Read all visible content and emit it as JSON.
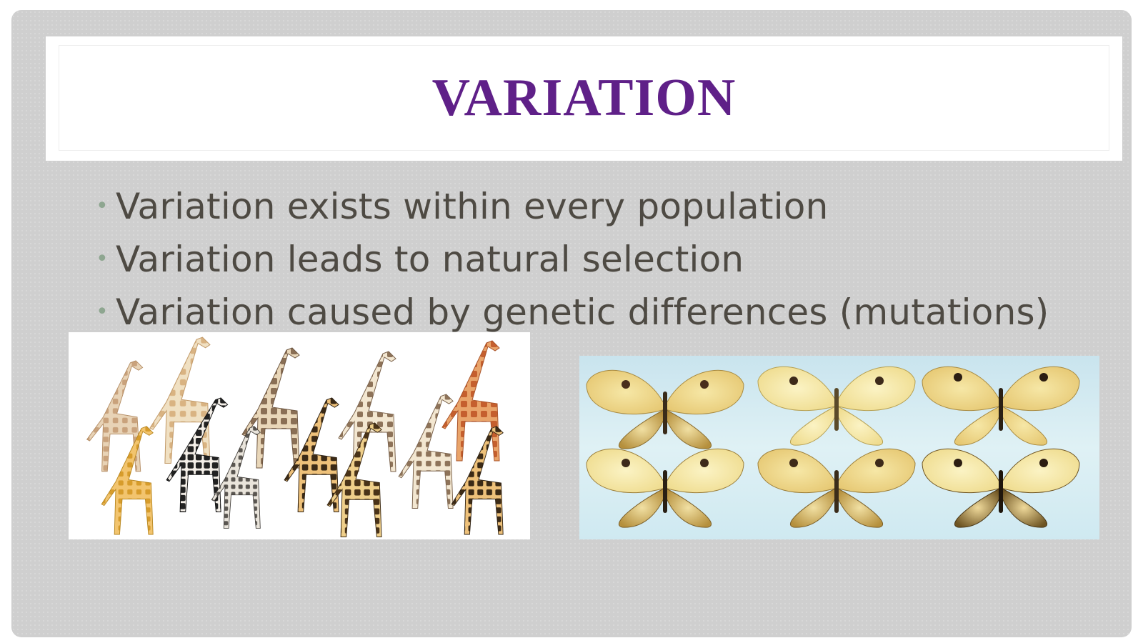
{
  "slide": {
    "title": "VARIATION",
    "bullets": [
      "Variation exists within every population",
      "Variation leads to natural selection",
      "Variation caused by genetic differences (mutations)"
    ],
    "bullet_glyph": "•"
  },
  "colors": {
    "title": "#5f2088",
    "text": "#4e4a43",
    "bullet": "#8ea690",
    "background": "#cfcfcf"
  },
  "images": {
    "left": "giraffes-illustration",
    "right": "butterflies-photo"
  }
}
